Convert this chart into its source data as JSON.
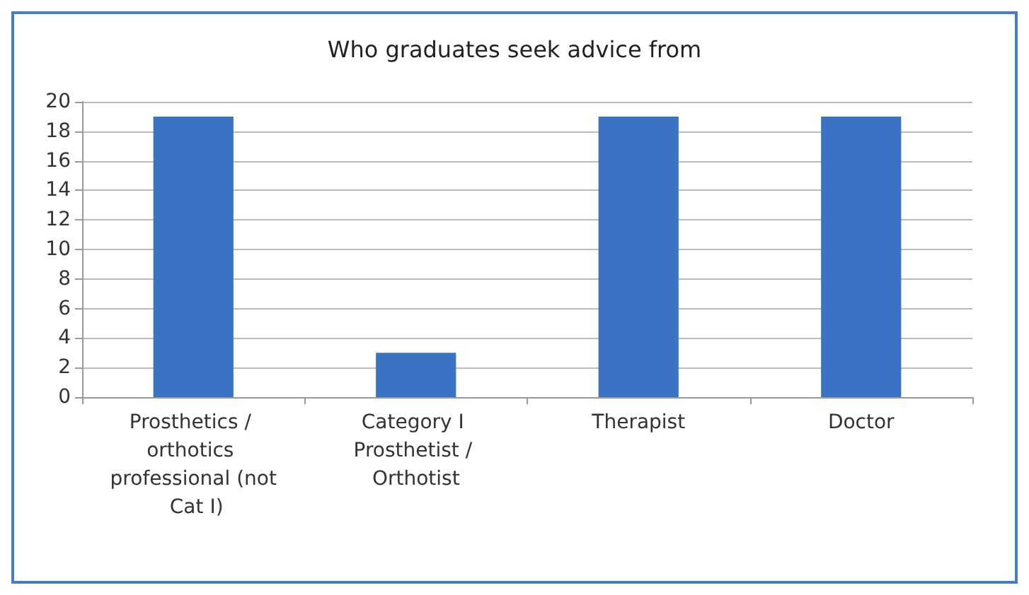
{
  "chart_data": {
    "type": "bar",
    "title": "Who graduates seek advice from",
    "categories": [
      "Prosthetics / orthotics professional (not Cat I)",
      "Category I Prosthetist / Orthotist",
      "Therapist",
      "Doctor"
    ],
    "values": [
      19,
      3,
      19,
      19
    ],
    "color": "#3a72c4",
    "ylim": [
      0,
      20
    ],
    "yticks": [
      0,
      2,
      4,
      6,
      8,
      10,
      12,
      14,
      16,
      18,
      20
    ],
    "grid": "y"
  }
}
